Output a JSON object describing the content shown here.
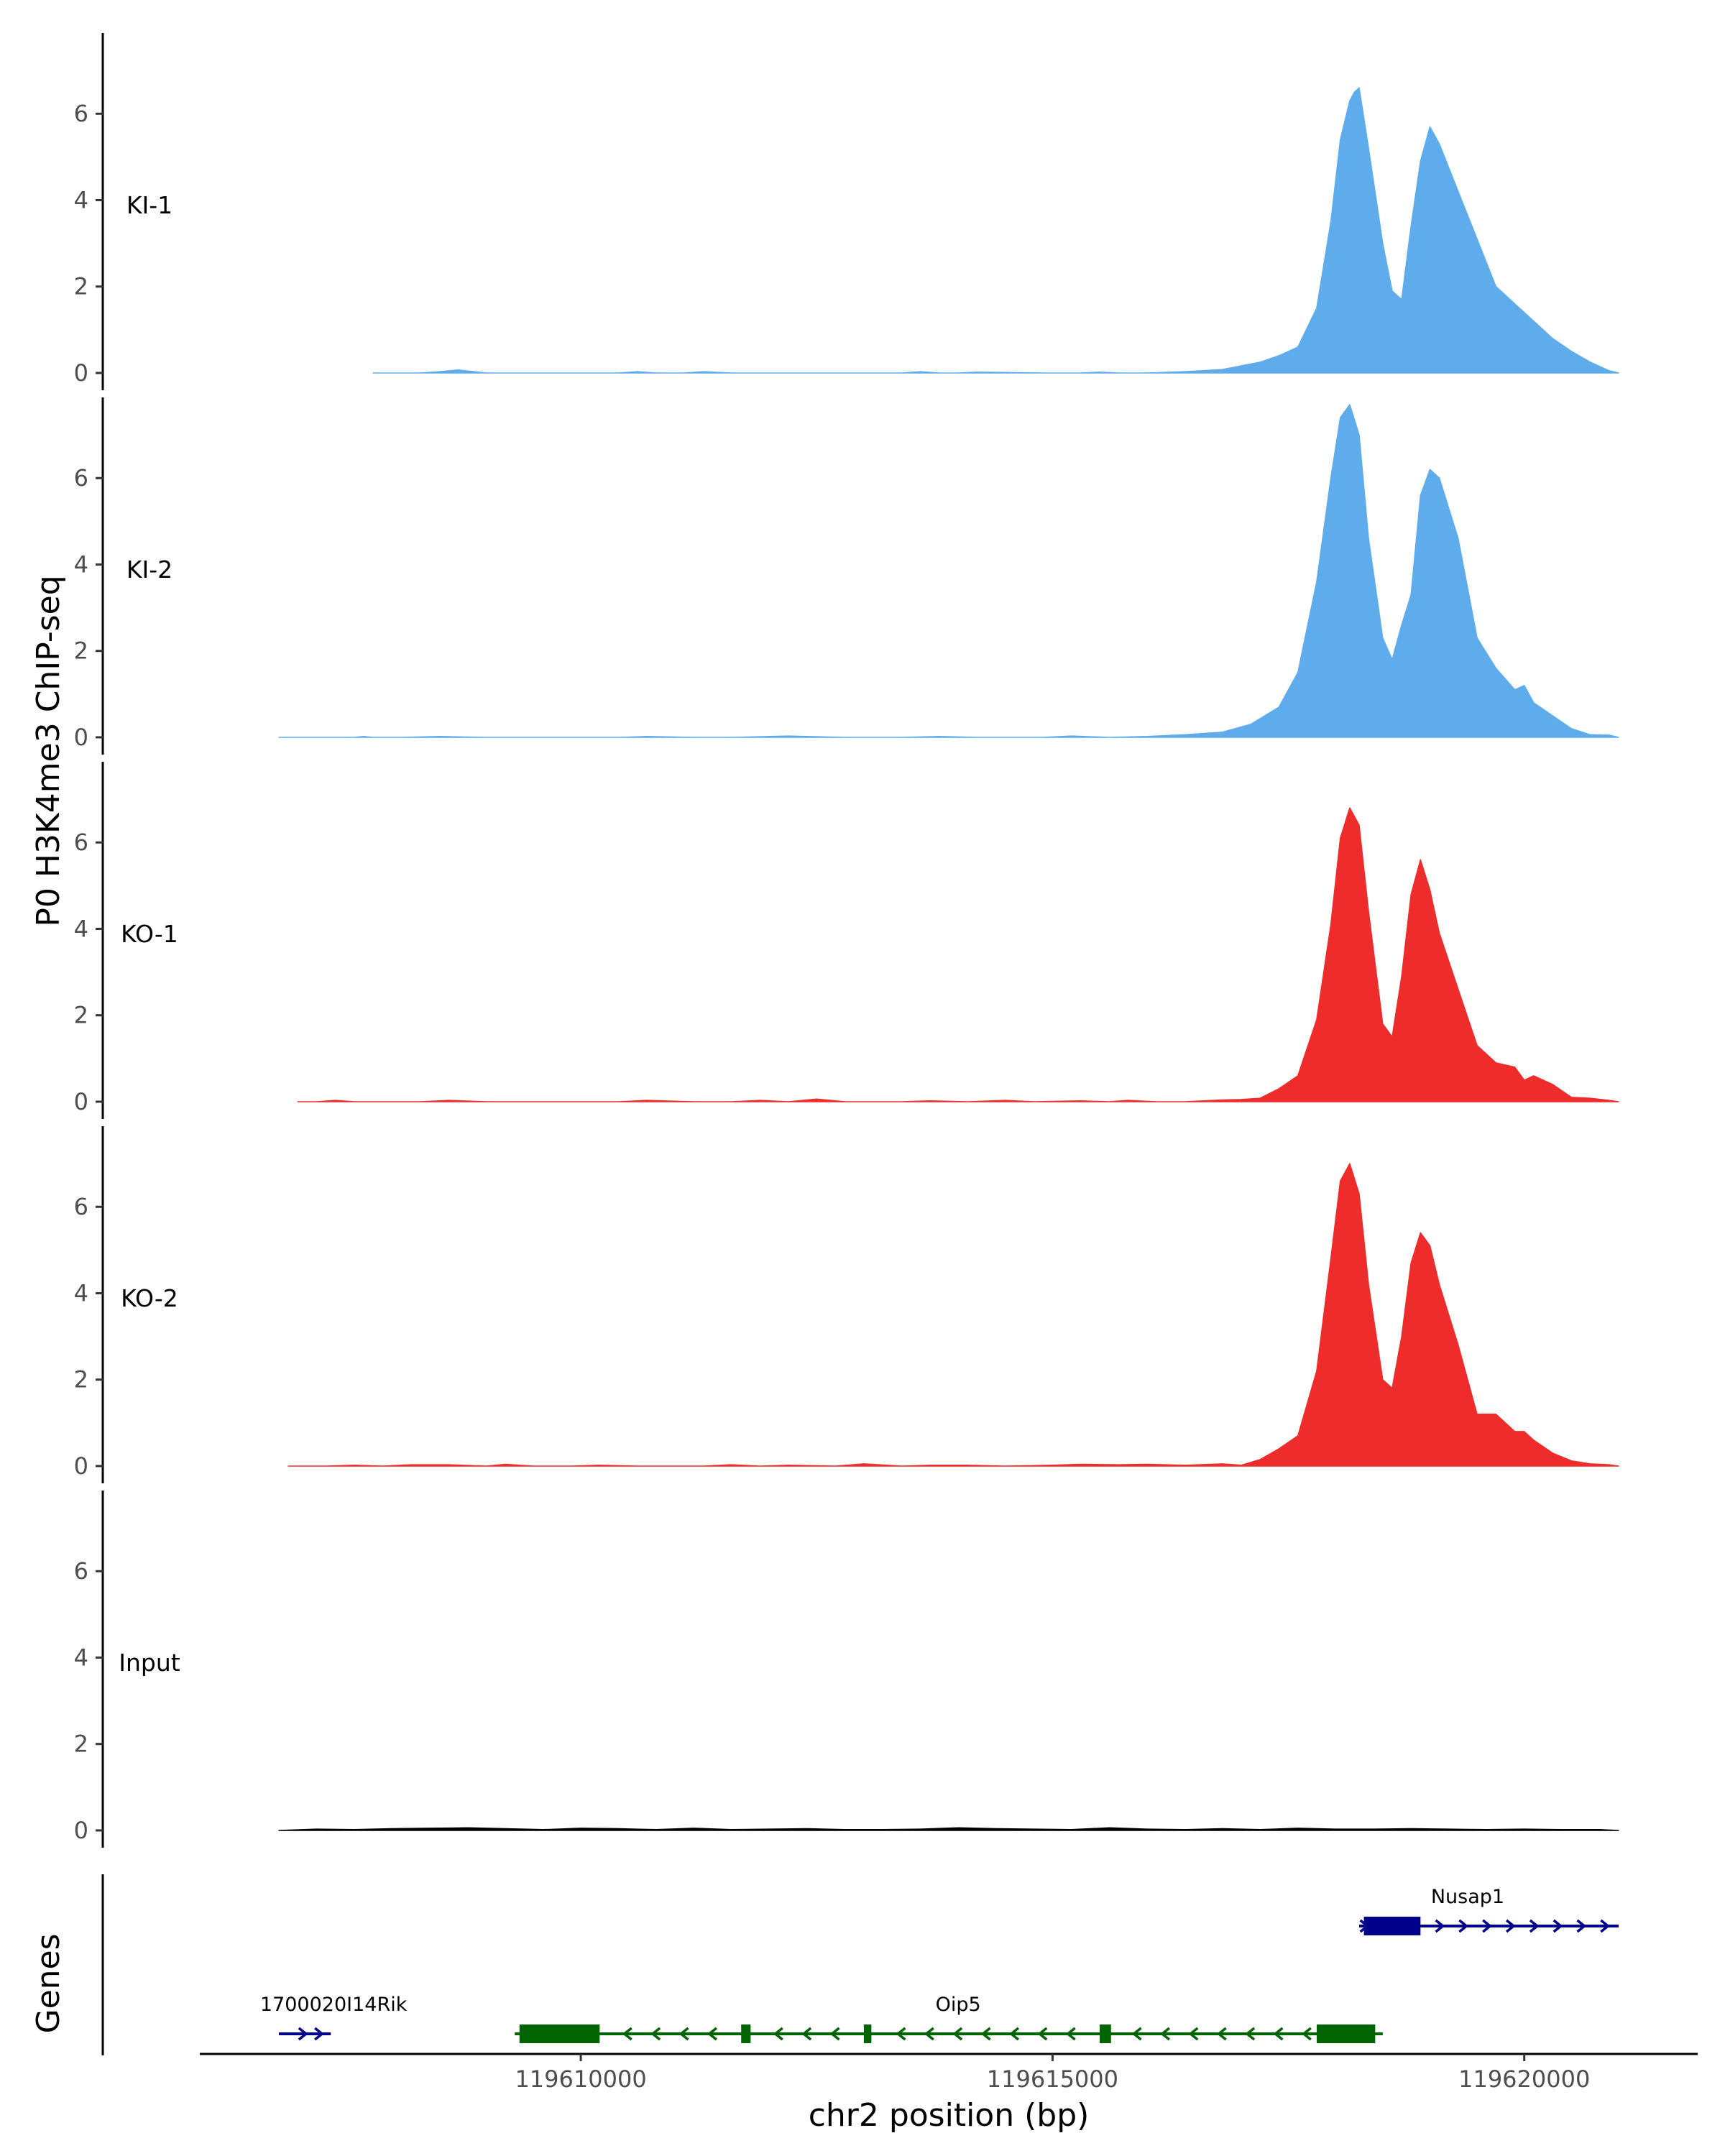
{
  "chart_data": {
    "type": "area",
    "title": "",
    "ylabel": "P0 H3K4me3 ChIP-seq",
    "xlabel": "chr2 position (bp)",
    "xlim": [
      119606000,
      119621800
    ],
    "ylim": [
      -0.4,
      8.0
    ],
    "yticks": [
      0,
      2,
      4,
      6
    ],
    "xticks": [
      119610000,
      119615000,
      119620000
    ],
    "xtick_labels": [
      "119610000",
      "119615000",
      "119620000"
    ],
    "colors": {
      "KI": "#5eacec",
      "KO": "#ee2c2c",
      "Input": "#000000",
      "gene_plus": "#00008b",
      "gene_minus": "#006400"
    },
    "tracks": [
      {
        "name": "KI-1",
        "color": "#5eacec",
        "x": [
          119607800,
          119608300,
          119608500,
          119608700,
          119609000,
          119609800,
          119610400,
          119610600,
          119610800,
          119611100,
          119611300,
          119611600,
          119612200,
          119612800,
          119613400,
          119613600,
          119613800,
          119614000,
          119614200,
          119614900,
          119615100,
          119615300,
          119615500,
          119615700,
          119616000,
          119616400,
          119616800,
          119617200,
          119617400,
          119617600,
          119617800,
          119617950,
          119618050,
          119618150,
          119618200,
          119618250,
          119618350,
          119618500,
          119618600,
          119618700,
          119618800,
          119618900,
          119619000,
          119619100,
          119619300,
          119619500,
          119619700,
          119619900,
          119620100,
          119620300,
          119620500,
          119620700,
          119620900,
          119621000
        ],
        "y": [
          0,
          0,
          0.03,
          0.07,
          0,
          0,
          0,
          0.03,
          0,
          0,
          0.03,
          0,
          0,
          0,
          0,
          0.03,
          0,
          0,
          0.02,
          0,
          0,
          0,
          0.02,
          0,
          0,
          0.03,
          0.08,
          0.25,
          0.4,
          0.6,
          1.5,
          3.5,
          5.4,
          6.3,
          6.5,
          6.6,
          5.2,
          3.0,
          1.9,
          1.7,
          3.4,
          4.9,
          5.7,
          5.3,
          4.2,
          3.1,
          2.0,
          1.6,
          1.2,
          0.8,
          0.5,
          0.25,
          0.05,
          0
        ]
      },
      {
        "name": "KI-2",
        "color": "#5eacec",
        "x": [
          119606800,
          119607600,
          119607700,
          119607800,
          119608100,
          119608500,
          119609000,
          119609800,
          119610400,
          119610700,
          119611200,
          119611600,
          119612200,
          119612800,
          119613400,
          119613800,
          119614200,
          119614900,
          119615200,
          119615600,
          119616000,
          119616400,
          119616800,
          119617100,
          119617400,
          119617600,
          119617800,
          119617950,
          119618050,
          119618150,
          119618250,
          119618350,
          119618500,
          119618600,
          119618700,
          119618800,
          119618900,
          119619000,
          119619100,
          119619300,
          119619500,
          119619700,
          119619900,
          119620000,
          119620100,
          119620300,
          119620500,
          119620700,
          119620900,
          119621000
        ],
        "y": [
          0,
          0,
          0.02,
          0,
          0,
          0.02,
          0,
          0,
          0,
          0.02,
          0,
          0,
          0.03,
          0,
          0,
          0.02,
          0,
          0,
          0.03,
          0,
          0.02,
          0.06,
          0.12,
          0.3,
          0.7,
          1.5,
          3.6,
          6.0,
          7.4,
          7.7,
          7.0,
          4.6,
          2.3,
          1.8,
          2.6,
          3.3,
          5.6,
          6.2,
          6.0,
          4.6,
          2.3,
          1.6,
          1.1,
          1.2,
          0.8,
          0.5,
          0.2,
          0.06,
          0.05,
          0
        ]
      },
      {
        "name": "KO-1",
        "color": "#ee2c2c",
        "x": [
          119607000,
          119607200,
          119607400,
          119607600,
          119607800,
          119608100,
          119608300,
          119608600,
          119609000,
          119609600,
          119610400,
          119610700,
          119611200,
          119611600,
          119611900,
          119612200,
          119612500,
          119612800,
          119613400,
          119613700,
          119614100,
          119614500,
          119614800,
          119615300,
          119615600,
          119615800,
          119616100,
          119616400,
          119616800,
          119617000,
          119617200,
          119617400,
          119617600,
          119617800,
          119617950,
          119618050,
          119618150,
          119618250,
          119618350,
          119618500,
          119618600,
          119618700,
          119618800,
          119618900,
          119619000,
          119619100,
          119619300,
          119619500,
          119619700,
          119619900,
          119620000,
          119620100,
          119620300,
          119620500,
          119620700,
          119620900,
          119621000
        ],
        "y": [
          0,
          0,
          0.03,
          0,
          0,
          0,
          0,
          0.03,
          0,
          0,
          0,
          0.03,
          0,
          0,
          0.03,
          0,
          0.06,
          0,
          0,
          0.02,
          0,
          0.03,
          0,
          0.02,
          0,
          0.03,
          0,
          0,
          0.04,
          0.05,
          0.08,
          0.3,
          0.6,
          1.9,
          4.1,
          6.1,
          6.8,
          6.4,
          4.4,
          1.8,
          1.5,
          2.9,
          4.8,
          5.6,
          4.9,
          3.9,
          2.6,
          1.3,
          0.9,
          0.8,
          0.5,
          0.6,
          0.4,
          0.1,
          0.08,
          0.03,
          0
        ]
      },
      {
        "name": "KO-2",
        "color": "#ee2c2c",
        "x": [
          119606900,
          119607300,
          119607600,
          119607900,
          119608200,
          119608600,
          119609000,
          119609200,
          119609500,
          119609900,
          119610200,
          119610600,
          119611000,
          119611300,
          119611600,
          119611900,
          119612200,
          119612700,
          119613000,
          119613400,
          119613700,
          119614100,
          119614500,
          119615000,
          119615300,
          119615700,
          119616000,
          119616400,
          119616800,
          119617000,
          119617200,
          119617400,
          119617600,
          119617800,
          119617950,
          119618050,
          119618150,
          119618250,
          119618350,
          119618500,
          119618600,
          119618700,
          119618800,
          119618900,
          119619000,
          119619100,
          119619300,
          119619500,
          119619700,
          119619900,
          119620000,
          119620100,
          119620300,
          119620500,
          119620700,
          119620900,
          119621000
        ],
        "y": [
          0,
          0,
          0.02,
          0,
          0.03,
          0.03,
          0,
          0.04,
          0,
          0,
          0.02,
          0,
          0,
          0,
          0.03,
          0,
          0.02,
          0,
          0.05,
          0,
          0.02,
          0.02,
          0,
          0.02,
          0.04,
          0.03,
          0.04,
          0.02,
          0.05,
          0.02,
          0.15,
          0.4,
          0.7,
          2.2,
          4.8,
          6.6,
          7.0,
          6.3,
          4.2,
          2.0,
          1.8,
          3.0,
          4.7,
          5.4,
          5.1,
          4.2,
          2.8,
          1.2,
          1.2,
          0.8,
          0.8,
          0.6,
          0.3,
          0.12,
          0.05,
          0.03,
          0
        ]
      },
      {
        "name": "Input",
        "color": "#000000",
        "x": [
          119606800,
          119607200,
          119607600,
          119608000,
          119608400,
          119608800,
          119609200,
          119609600,
          119610000,
          119610400,
          119610800,
          119611200,
          119611600,
          119612000,
          119612400,
          119612800,
          119613200,
          119613600,
          119614000,
          119614400,
          119614800,
          119615200,
          119615600,
          119616000,
          119616400,
          119616800,
          119617200,
          119617600,
          119618000,
          119618400,
          119618800,
          119619200,
          119619600,
          119620000,
          119620400,
          119620800,
          119621000
        ],
        "y": [
          0,
          0.03,
          0.02,
          0.04,
          0.05,
          0.06,
          0.04,
          0.02,
          0.05,
          0.04,
          0.02,
          0.05,
          0.02,
          0.03,
          0.04,
          0.02,
          0.02,
          0.03,
          0.06,
          0.04,
          0.03,
          0.02,
          0.06,
          0.03,
          0.02,
          0.04,
          0.02,
          0.05,
          0.03,
          0.03,
          0.04,
          0.03,
          0.02,
          0.03,
          0.02,
          0.02,
          0
        ]
      }
    ],
    "genes_panel": {
      "ylabel": "Genes",
      "genes": [
        {
          "name": "1700020I14Rik",
          "strand": "+",
          "color": "#00008b",
          "row": 2,
          "start": 119606800,
          "end": 119607350,
          "exons": [],
          "chevrons": [
            119607050,
            119607220
          ]
        },
        {
          "name": "Oip5",
          "strand": "-",
          "color": "#006400",
          "row": 2,
          "start": 119609300,
          "end": 119618500,
          "label_pos": 119614000,
          "exons": [
            [
              119609350,
              119610200
            ],
            [
              119611700,
              119611800
            ],
            [
              119613000,
              119613080
            ],
            [
              119615500,
              119615620
            ],
            [
              119617800,
              119618420
            ]
          ],
          "chevrons": [
            119610500,
            119610800,
            119611100,
            119611400,
            119612100,
            119612400,
            119612700,
            119613400,
            119613700,
            119614000,
            119614300,
            119614600,
            119614900,
            119615200,
            119615900,
            119616200,
            119616500,
            119616800,
            119617100,
            119617400,
            119617700
          ]
        },
        {
          "name": "Nusap1",
          "strand": "+",
          "color": "#00008b",
          "row": 1,
          "start": 119618250,
          "end": 119621000,
          "label_pos": 119619400,
          "exons": [
            [
              119618300,
              119618900
            ]
          ],
          "chevrons": [
            119618300,
            119619100,
            119619350,
            119619600,
            119619850,
            119620100,
            119620350,
            119620600,
            119620850
          ]
        }
      ]
    }
  }
}
